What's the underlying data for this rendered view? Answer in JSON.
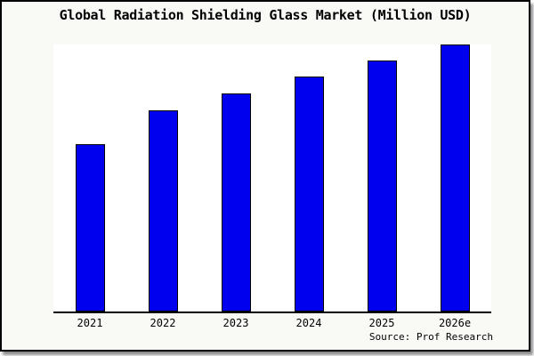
{
  "window": {
    "background": "#f9f9f6",
    "border_color": "#000000",
    "plot_background": "#ffffff",
    "axis_color": "#000000"
  },
  "chart_data": {
    "type": "bar",
    "title": "Global Radiation Shielding Glass Market (Million USD)",
    "categories": [
      "2021",
      "2022",
      "2023",
      "2024",
      "2025",
      "2026e"
    ],
    "values": [
      62.8,
      75.3,
      81.6,
      88.0,
      94.0,
      100.0
    ],
    "value_note": "Relative bar heights as % of tallest bar (2026e); chart shows no numeric y-axis",
    "xlabel": "",
    "ylabel": "",
    "ylim": [
      0,
      100
    ],
    "grid": false,
    "legend": false,
    "bar_color": "#0000ee",
    "bar_border_color": "#000000",
    "source_label": "Source: Prof Research"
  }
}
